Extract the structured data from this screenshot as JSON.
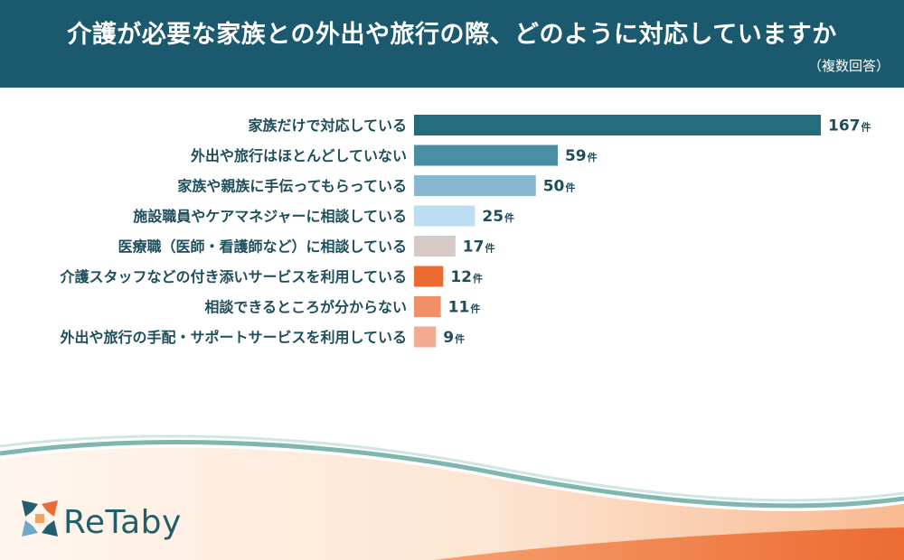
{
  "header": {
    "title": "介護が必要な家族との外出や旅行の際、どのように対応していますか",
    "subtitle": "（複数回答）"
  },
  "chart_data": {
    "type": "bar",
    "orientation": "horizontal",
    "categories": [
      "家族だけで対応している",
      "外出や旅行はほとんどしていない",
      "家族や親族に手伝ってもらっている",
      "施設職員やケアマネジャーに相談している",
      "医療職（医師・看護師など）に相談している",
      "介護スタッフなどの付き添いサービスを利用している",
      "相談できるところが分からない",
      "外出や旅行の手配・サポートサービスを利用している"
    ],
    "values": [
      167,
      59,
      50,
      25,
      17,
      12,
      11,
      9
    ],
    "unit": "件",
    "colors": [
      "#256c7c",
      "#4a8ea3",
      "#86b7cf",
      "#bcdcf2",
      "#d6c9c6",
      "#ec6b33",
      "#ef9068",
      "#f3ac93"
    ]
  },
  "brand": {
    "name": "ReTaby",
    "colors": {
      "teal": "#215f6d",
      "orange": "#ec6b33",
      "blue": "#6fa8c8"
    }
  }
}
